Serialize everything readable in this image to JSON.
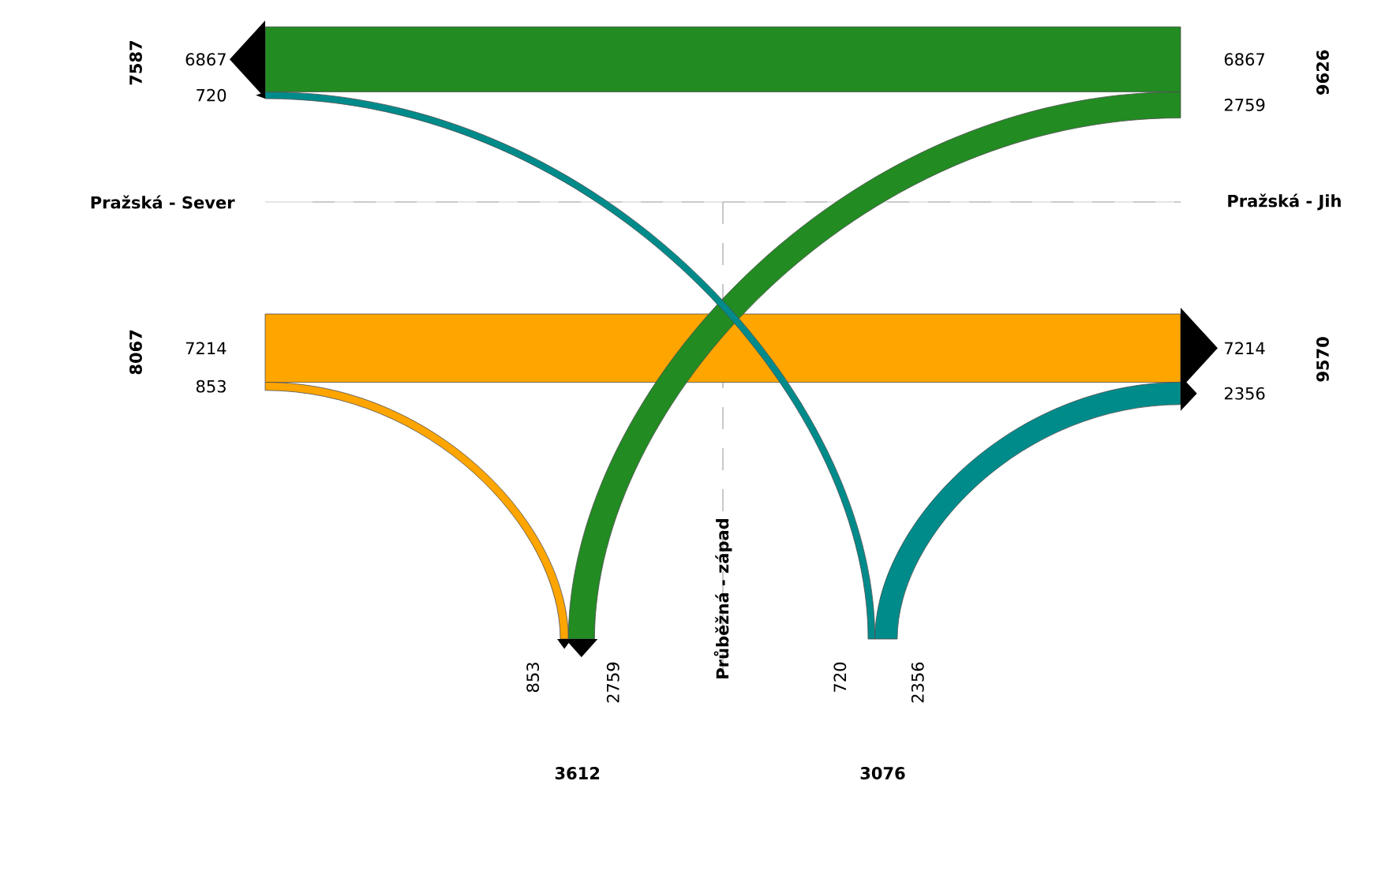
{
  "chart_data": {
    "type": "other",
    "categories": [
      "Pražská - Sever",
      "Pražská - Jih",
      "Průběžná - západ"
    ],
    "series": [
      {
        "color": "#ffa500",
        "values": [
          null,
          7214,
          853
        ]
      },
      {
        "color": "#228b22",
        "values": [
          6867,
          null,
          2759
        ]
      },
      {
        "color": "#008b8b",
        "values": [
          720,
          2356,
          null
        ]
      }
    ],
    "annotations": [
      "7587",
      "8067",
      "9626",
      "9570",
      "3612",
      "3076",
      "7214",
      "853",
      "6867",
      "2759",
      "720",
      "2356"
    ],
    "data_labels": true
  }
}
